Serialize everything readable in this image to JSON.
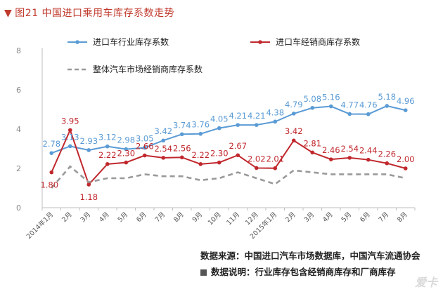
{
  "figure_title": "图21 中国进口乘用车库存系数走势",
  "source_text": "数据来源：中国进口汽车市场数据库，中国汽车流通协会",
  "note_text": "数据说明：行业库存包含经销商库存和厂商库存",
  "watermark": "爱卡",
  "colors": {
    "industry": "#5a9bd5",
    "dealer": "#c0282d",
    "overall": "#9a9a9a",
    "axis": "#bfbfbf",
    "title": "#c0392b"
  },
  "chart_data": {
    "type": "line",
    "categories": [
      "2014年1月",
      "2月",
      "3月",
      "4月",
      "5月",
      "6月",
      "7月",
      "8月",
      "9月",
      "10月",
      "11月",
      "12月",
      "2015年1月",
      "2月",
      "3月",
      "4月",
      "5月",
      "6月",
      "7月",
      "8月"
    ],
    "ylim": [
      0,
      8
    ],
    "yticks": [
      0,
      2,
      4,
      6,
      8
    ],
    "grid": false,
    "legend_position": "top",
    "series": [
      {
        "name": "进口车行业库存系数",
        "color": "#5a9bd5",
        "dash": false,
        "labeled": true,
        "values": [
          2.78,
          3.13,
          2.93,
          3.12,
          2.98,
          3.05,
          3.42,
          3.74,
          3.76,
          4.05,
          4.21,
          4.21,
          4.38,
          4.79,
          5.08,
          5.16,
          4.77,
          4.76,
          5.18,
          4.96
        ],
        "labels": [
          "2.78",
          "3.13",
          "2.93",
          "3.12",
          "2.98",
          "3.05",
          "3.42",
          "3.74",
          "3.76",
          "4.05",
          "4.21",
          "4.21",
          "4.38",
          "4.79",
          "5.08",
          "5.16",
          "4.77",
          "4.76",
          "5.18",
          "4.96"
        ]
      },
      {
        "name": "进口车经销商库存系数",
        "color": "#c0282d",
        "dash": false,
        "labeled": true,
        "values": [
          1.8,
          3.95,
          1.18,
          2.22,
          2.3,
          2.66,
          2.54,
          2.56,
          2.22,
          2.3,
          2.67,
          2.02,
          2.01,
          3.42,
          2.81,
          2.46,
          2.54,
          2.44,
          2.26,
          2.0
        ],
        "labels": [
          "1.80",
          "3.95",
          "1.18",
          "2.22",
          "2.30",
          "2.66",
          "2.54",
          "2.56",
          "2.22",
          "2.30",
          "2.67",
          "2.02",
          "2.01",
          "3.42",
          "2.81",
          "2.46",
          "2.54",
          "2.44",
          "2.26",
          "2.00"
        ]
      },
      {
        "name": "整体汽车市场经销商库存系数",
        "color": "#9a9a9a",
        "dash": true,
        "labeled": false,
        "values": [
          1.0,
          2.1,
          1.3,
          1.5,
          1.5,
          1.7,
          1.6,
          1.6,
          1.4,
          1.5,
          1.8,
          1.5,
          1.2,
          1.9,
          1.8,
          1.7,
          1.7,
          1.7,
          1.7,
          1.5
        ]
      }
    ]
  }
}
